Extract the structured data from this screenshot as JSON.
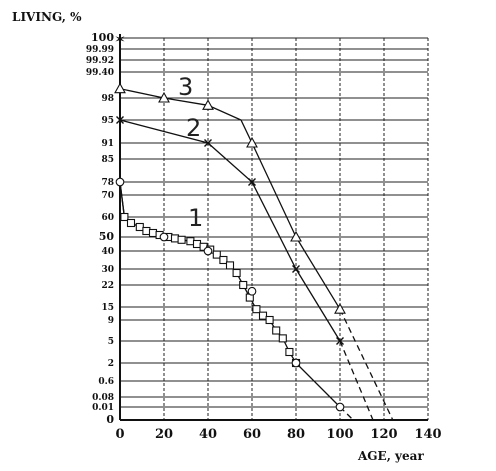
{
  "chart_data": {
    "type": "line",
    "ylabel": "LIVING, %",
    "xlabel": "AGE, year",
    "xlim": [
      0,
      140
    ],
    "x_ticks": [
      "0",
      "20",
      "40",
      "60",
      "80",
      "100",
      "120",
      "140"
    ],
    "y_ticks": [
      "100",
      "99.99",
      "99.92",
      "99.40",
      "98",
      "95",
      "91",
      "85",
      "78",
      "70",
      "60",
      "50",
      "40",
      "30",
      "22",
      "15",
      "9",
      "5",
      "2",
      "0.6",
      "0.08",
      "0.01",
      "0"
    ],
    "grid": true,
    "series": [
      {
        "name": "1",
        "marker": "square",
        "points": [
          [
            0,
            78
          ],
          [
            2,
            60
          ],
          [
            5,
            57
          ],
          [
            9,
            55
          ],
          [
            12,
            53
          ],
          [
            15,
            52
          ],
          [
            18,
            51
          ],
          [
            22,
            50
          ],
          [
            25,
            49
          ],
          [
            28,
            48
          ],
          [
            32,
            47
          ],
          [
            35,
            45
          ],
          [
            38,
            43
          ],
          [
            41,
            41
          ],
          [
            44,
            38
          ],
          [
            47,
            35
          ],
          [
            50,
            32
          ],
          [
            53,
            28
          ],
          [
            56,
            22
          ],
          [
            59,
            18
          ],
          [
            62,
            14
          ],
          [
            65,
            11
          ],
          [
            68,
            9
          ],
          [
            71,
            7
          ],
          [
            74,
            5.5
          ],
          [
            77,
            3.5
          ],
          [
            80,
            2
          ],
          [
            100,
            0.01
          ]
        ],
        "circle_points": [
          [
            0,
            78
          ],
          [
            20,
            50
          ],
          [
            40,
            40
          ],
          [
            60,
            20
          ],
          [
            80,
            2
          ],
          [
            100,
            0.01
          ]
        ],
        "extension": [
          [
            100,
            0.01
          ],
          [
            106,
            0
          ]
        ]
      },
      {
        "name": "2",
        "marker": "cross",
        "points": [
          [
            0,
            95
          ],
          [
            40,
            91
          ],
          [
            60,
            78
          ],
          [
            80,
            30
          ],
          [
            100,
            5
          ]
        ],
        "extension": [
          [
            100,
            5
          ],
          [
            115,
            0
          ]
        ]
      },
      {
        "name": "3",
        "marker": "triangle",
        "points": [
          [
            0,
            98.5
          ],
          [
            20,
            98
          ],
          [
            40,
            97
          ],
          [
            55,
            95
          ],
          [
            60,
            91
          ],
          [
            80,
            50
          ],
          [
            100,
            14
          ]
        ],
        "extension": [
          [
            100,
            14
          ],
          [
            124,
            0
          ]
        ]
      }
    ]
  }
}
